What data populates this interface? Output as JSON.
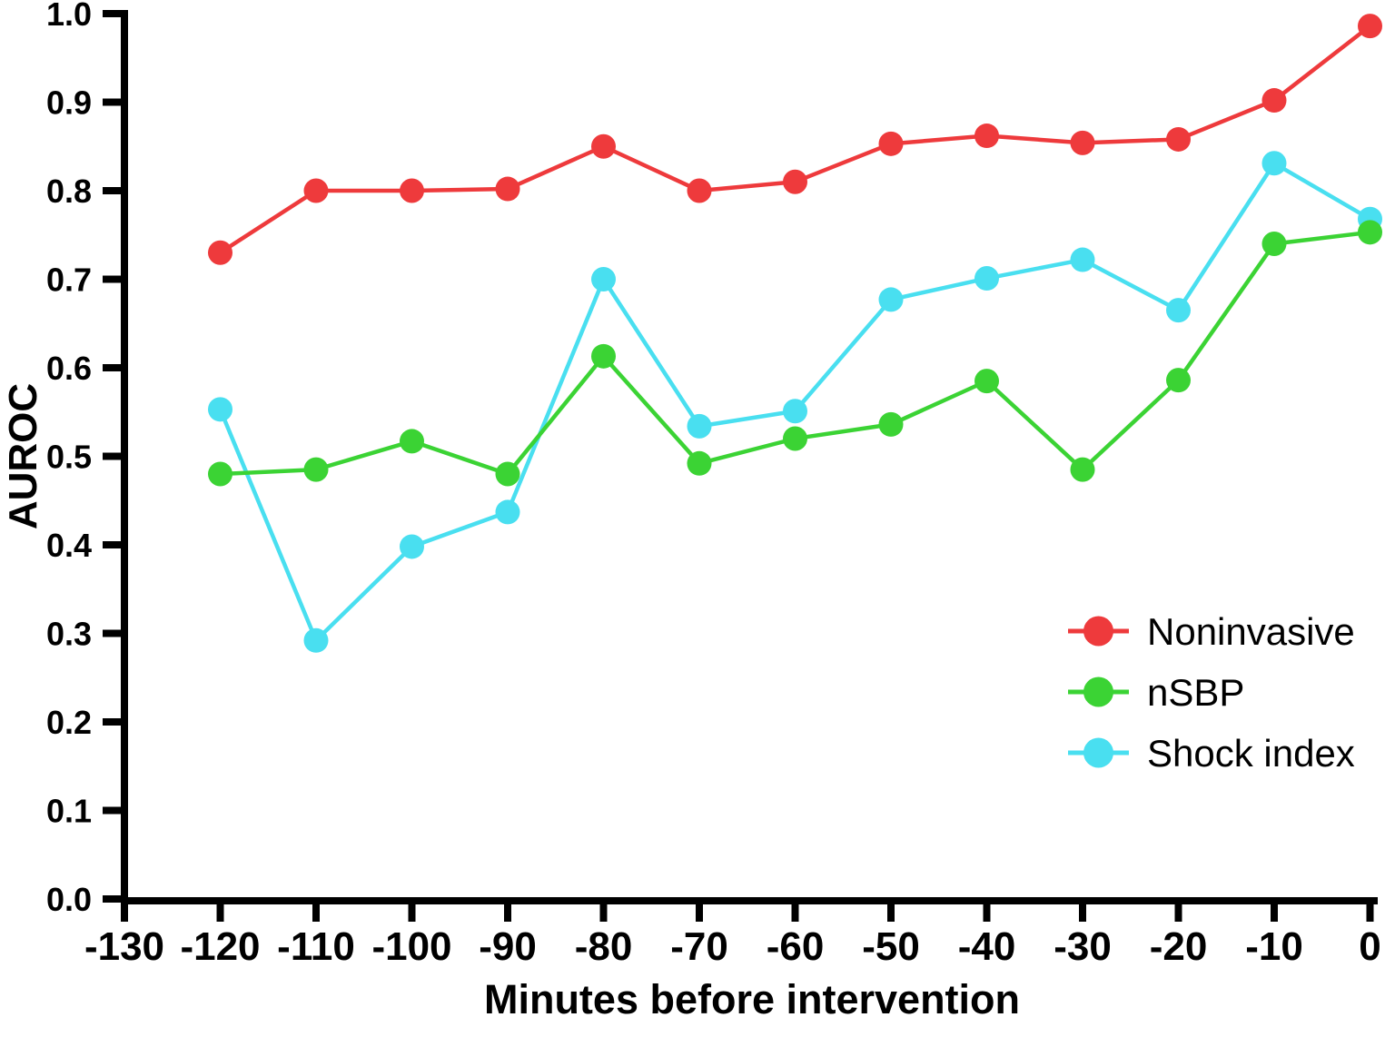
{
  "chart_data": {
    "type": "line",
    "title": "",
    "xlabel": "Minutes before intervention",
    "ylabel": "AUROC",
    "xlim": [
      -130,
      0
    ],
    "ylim": [
      0.0,
      1.0
    ],
    "grid": false,
    "legend_position": "inside-right",
    "axis_color": "#000000",
    "x_tick_labels": [
      "-130",
      "-120",
      "-110",
      "-100",
      "-90",
      "-80",
      "-70",
      "-60",
      "-50",
      "-40",
      "-30",
      "-20",
      "-10",
      "0"
    ],
    "x_tick_values": [
      -130,
      -120,
      -110,
      -100,
      -90,
      -80,
      -70,
      -60,
      -50,
      -40,
      -30,
      -20,
      -10,
      0
    ],
    "y_tick_labels": [
      "0.0",
      "0.1",
      "0.2",
      "0.3",
      "0.4",
      "0.5",
      "0.6",
      "0.7",
      "0.8",
      "0.9",
      "1.0"
    ],
    "y_tick_values": [
      0.0,
      0.1,
      0.2,
      0.3,
      0.4,
      0.5,
      0.6,
      0.7,
      0.8,
      0.9,
      1.0
    ],
    "x": [
      -120,
      -110,
      -100,
      -90,
      -80,
      -70,
      -60,
      -50,
      -40,
      -30,
      -20,
      -10,
      0
    ],
    "series": [
      {
        "name": "Noninvasive",
        "color": "#EE3A3C",
        "values": [
          0.73,
          0.8,
          0.8,
          0.802,
          0.85,
          0.8,
          0.81,
          0.853,
          0.862,
          0.854,
          0.858,
          0.902,
          0.986
        ]
      },
      {
        "name": "nSBP",
        "color": "#3BD334",
        "values": [
          0.48,
          0.485,
          0.517,
          0.48,
          0.613,
          0.492,
          0.52,
          0.536,
          0.585,
          0.485,
          0.586,
          0.74,
          0.753
        ]
      },
      {
        "name": "Shock index",
        "color": "#49DFF0",
        "values": [
          0.553,
          0.292,
          0.398,
          0.437,
          0.7,
          0.534,
          0.551,
          0.677,
          0.701,
          0.722,
          0.665,
          0.831,
          0.768
        ]
      }
    ]
  }
}
